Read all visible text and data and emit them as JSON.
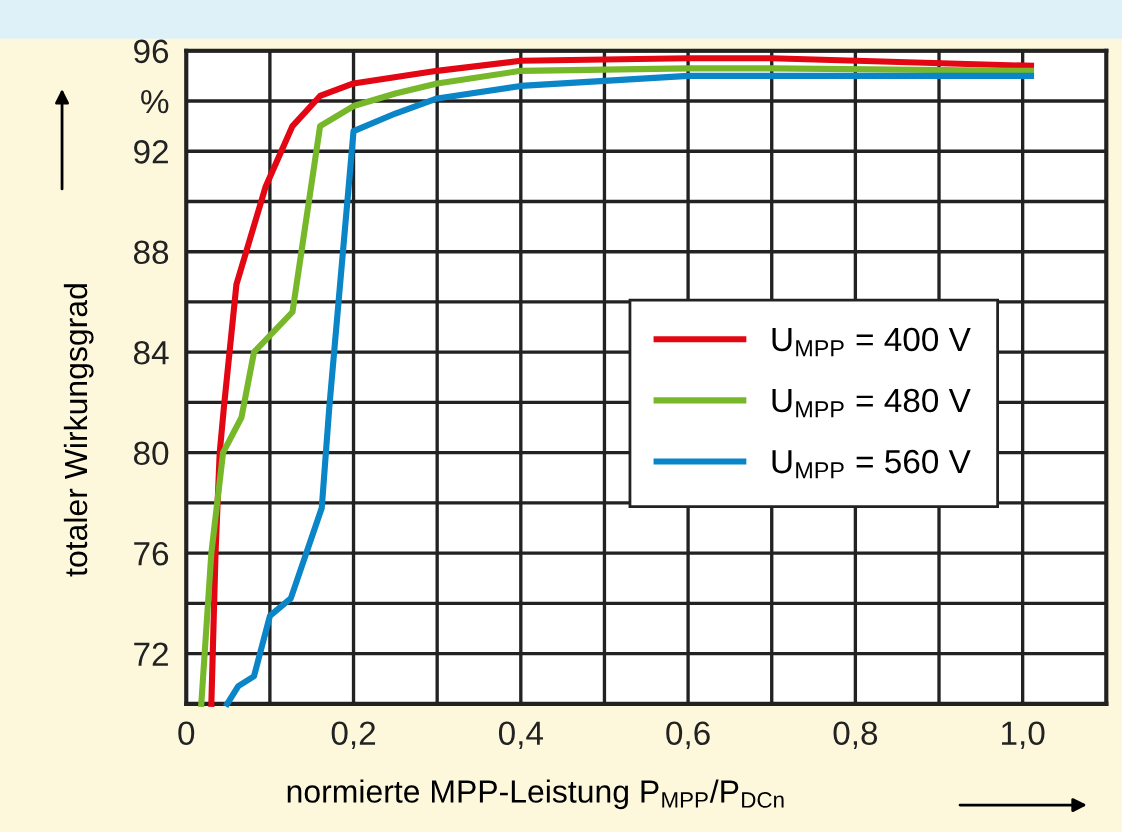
{
  "chart_data": {
    "type": "line",
    "xlabel": "normierte MPP-Leistung P$_{MPP}$/P$_{DCn}$",
    "ylabel": "totaler Wirkungsgrad",
    "xlim": [
      0,
      1.1
    ],
    "ylim": [
      70,
      96
    ],
    "xticks": [
      0,
      {
        "value": 0.1,
        "label": null
      },
      {
        "value": 0.2,
        "label": "0,2"
      },
      {
        "value": 0.3,
        "label": null
      },
      {
        "value": 0.4,
        "label": "0,4"
      },
      {
        "value": 0.5,
        "label": null
      },
      {
        "value": 0.6,
        "label": "0,6"
      },
      {
        "value": 0.7,
        "label": null
      },
      {
        "value": 0.8,
        "label": "0,8"
      },
      {
        "value": 0.9,
        "label": null
      },
      {
        "value": 1.0,
        "label": "1,0"
      }
    ],
    "yticks": [
      72,
      {
        "value": 74,
        "label": null
      },
      76,
      {
        "value": 78,
        "label": null
      },
      80,
      {
        "value": 82,
        "label": null
      },
      84,
      {
        "value": 86,
        "label": null
      },
      88,
      {
        "value": 90,
        "label": null
      },
      92,
      {
        "value": 94,
        "label": "%"
      },
      96
    ],
    "grid": true,
    "legend": "right",
    "marker": "none",
    "line_style": "solid",
    "series": [
      {
        "name": "U$_{MPP}$ = 400 V",
        "color": "#e30613",
        "x": [
          0.03,
          0.035,
          0.04,
          0.045,
          0.06,
          0.095,
          0.127,
          0.16,
          0.2,
          0.3,
          0.4,
          0.6,
          0.7,
          1.01
        ],
        "values": [
          70,
          76,
          80,
          81.8,
          86.7,
          90.6,
          93,
          94.2,
          94.7,
          95.2,
          95.6,
          95.7,
          95.7,
          95.4
        ]
      },
      {
        "name": "U$_{MPP}$ = 480 V",
        "color": "#76b82a",
        "x": [
          0.018,
          0.03,
          0.044,
          0.066,
          0.081,
          0.127,
          0.16,
          0.2,
          0.25,
          0.3,
          0.4,
          0.6,
          0.7,
          1.01
        ],
        "values": [
          70,
          76,
          80,
          81.4,
          84,
          85.6,
          93,
          93.8,
          94.3,
          94.7,
          95.2,
          95.3,
          95.3,
          95.2
        ]
      },
      {
        "name": "U$_{MPP}$ = 560 V",
        "color": "#0a85c8",
        "x": [
          0.049,
          0.062,
          0.081,
          0.1,
          0.125,
          0.162,
          0.171,
          0.2,
          0.25,
          0.3,
          0.4,
          0.6,
          1.01
        ],
        "values": [
          70,
          70.7,
          71.1,
          73.5,
          74.2,
          77.8,
          81.8,
          92.8,
          93.5,
          94.1,
          94.6,
          95.0,
          95.0
        ]
      }
    ]
  }
}
